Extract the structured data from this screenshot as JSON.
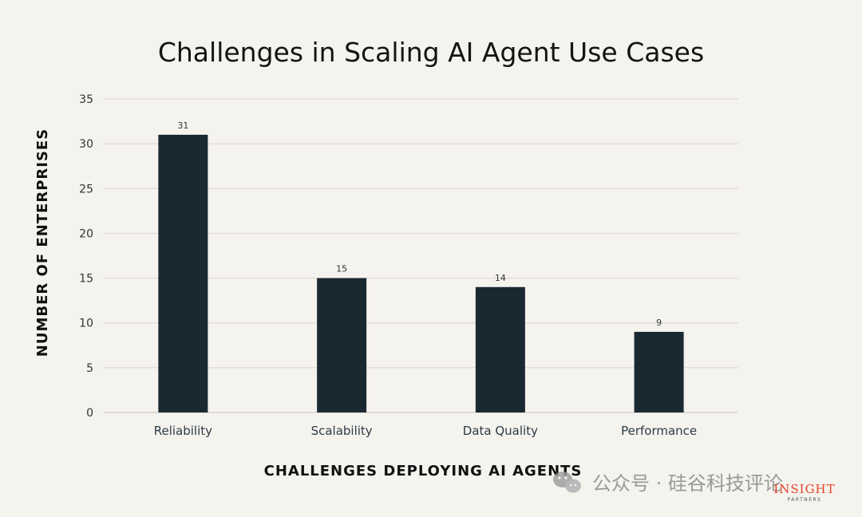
{
  "chart_data": {
    "type": "bar",
    "title": "Challenges in Scaling AI Agent Use Cases",
    "xlabel": "CHALLENGES DEPLOYING AI AGENTS",
    "ylabel": "NUMBER OF ENTERPRISES",
    "categories": [
      "Reliability",
      "Scalability",
      "Data Quality",
      "Performance"
    ],
    "values": [
      31,
      15,
      14,
      9
    ],
    "ylim": [
      0,
      35
    ],
    "yticks": [
      0,
      5,
      10,
      15,
      20,
      25,
      30,
      35
    ],
    "grid": true,
    "bar_color": "#1a2832",
    "data_labels": true
  },
  "watermark": {
    "text": "公众号 · 硅谷科技评论",
    "icon": "wechat-icon"
  },
  "brand": {
    "name": "INSIGHT",
    "sub": "PARTNERS"
  }
}
